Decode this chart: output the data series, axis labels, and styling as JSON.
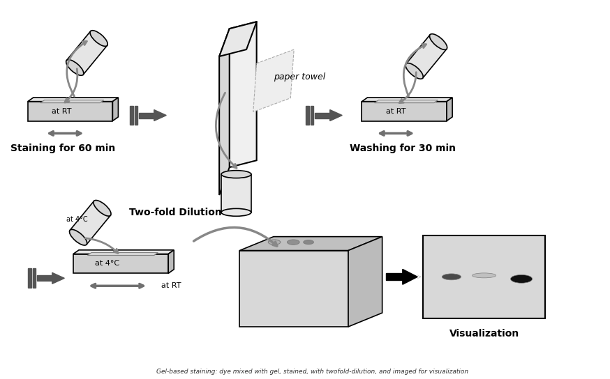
{
  "title": "",
  "background_color": "#ffffff",
  "step1_label": "Staining for 60 min",
  "step2_label": "paper towel",
  "step3_label": "Washing for 30 min",
  "step4_label": "Two-fold Dilution",
  "step5_label": "Visualization",
  "at_rt": "at RT",
  "at_4c": "at 4°C",
  "at_rt2": "at RT",
  "gray_color": "#808080",
  "dark_gray": "#555555",
  "light_gray": "#cccccc",
  "arrow_color": "#606060",
  "box_fill": "#e8e8e8",
  "tray_fill": "#d0d0d0",
  "tray_side": "#b0b0b0"
}
